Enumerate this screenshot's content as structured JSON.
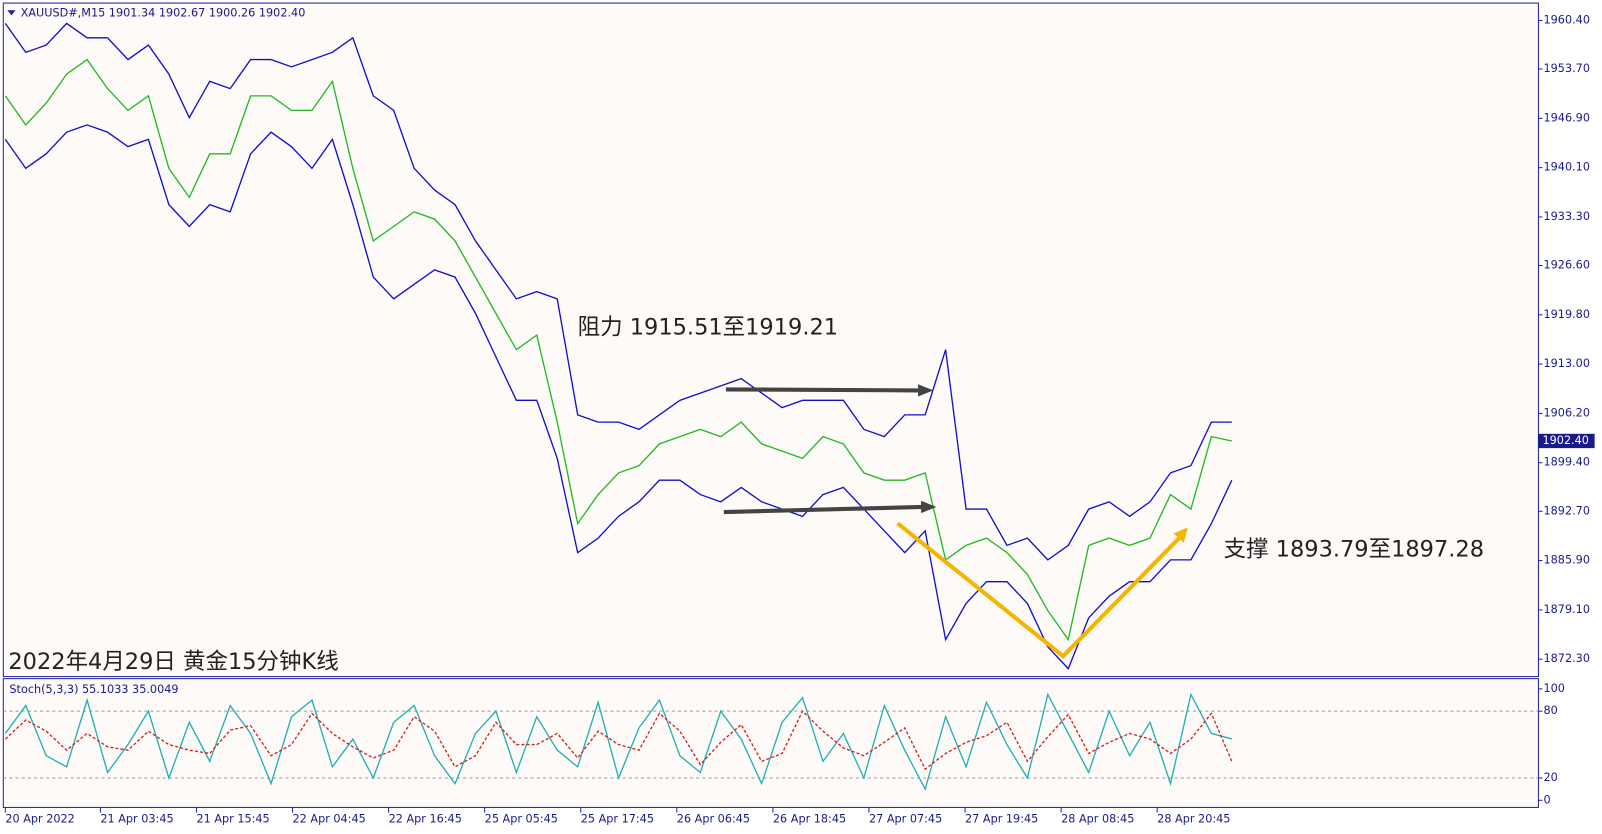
{
  "chart_data": [
    {
      "type": "line",
      "header": "XAUUSD#,M15  1901.34 1902.67 1900.26 1902.40",
      "annotations": [
        "阻力 1915.51至1919.21",
        "支撑 1893.79至1897.28",
        "2022年4月29日 黄金15分钟K线"
      ],
      "xlim": [
        0,
        60
      ],
      "xticks": [
        {
          "value": 0,
          "label": "20 Apr 2022"
        },
        {
          "value": 4.65,
          "label": "21 Apr 03:45"
        },
        {
          "value": 9.35,
          "label": "21 Apr 15:45"
        },
        {
          "value": 14.05,
          "label": "22 Apr 04:45"
        },
        {
          "value": 18.75,
          "label": "22 Apr 16:45"
        },
        {
          "value": 23.45,
          "label": "25 Apr 05:45"
        },
        {
          "value": 28.15,
          "label": "25 Apr 17:45"
        },
        {
          "value": 32.85,
          "label": "26 Apr 06:45"
        },
        {
          "value": 37.55,
          "label": "26 Apr 18:45"
        },
        {
          "value": 42.25,
          "label": "27 Apr 07:45"
        },
        {
          "value": 46.95,
          "label": "27 Apr 19:45"
        },
        {
          "value": 51.65,
          "label": "28 Apr 08:45"
        },
        {
          "value": 56.35,
          "label": "28 Apr 20:45"
        }
      ],
      "ylim": [
        1869.9,
        1962.8
      ],
      "yticks": [
        {
          "value": 1960.4,
          "label": "1960.40"
        },
        {
          "value": 1953.7,
          "label": "1953.70"
        },
        {
          "value": 1946.9,
          "label": "1946.90"
        },
        {
          "value": 1940.1,
          "label": "1940.10"
        },
        {
          "value": 1933.3,
          "label": "1933.30"
        },
        {
          "value": 1926.6,
          "label": "1926.60"
        },
        {
          "value": 1919.8,
          "label": "1919.80"
        },
        {
          "value": 1913,
          "label": "1913.00"
        },
        {
          "value": 1906.2,
          "label": "1906.20"
        },
        {
          "value": 1899.4,
          "label": "1899.40"
        },
        {
          "value": 1892.7,
          "label": "1892.70"
        },
        {
          "value": 1885.9,
          "label": "1885.90"
        },
        {
          "value": 1879.1,
          "label": "1879.10"
        },
        {
          "value": 1872.3,
          "label": "1872.30"
        }
      ],
      "last_price": {
        "value": 1902.4,
        "label": "1902.40"
      },
      "series": [
        {
          "color": "#22b822",
          "values": [
            1950,
            1946,
            1949,
            1953,
            1955,
            1951,
            1948,
            1950,
            1940,
            1936,
            1942,
            1942,
            1950,
            1950,
            1948,
            1948,
            1952,
            1940,
            1930,
            1932,
            1934,
            1933,
            1930,
            1925,
            1920,
            1915,
            1917,
            1905,
            1891,
            1895,
            1898,
            1899,
            1902,
            1903,
            1904,
            1903,
            1905,
            1902,
            1901,
            1900,
            1903,
            1902,
            1898,
            1897,
            1897,
            1898,
            1886,
            1888,
            1889,
            1887,
            1884,
            1879,
            1875,
            1888,
            1889,
            1888,
            1889,
            1895,
            1893,
            1903,
            1902.4
          ]
        },
        {
          "color": "#1010c8",
          "values": [
            1960,
            1956,
            1957,
            1960,
            1958,
            1958,
            1955,
            1957,
            1953,
            1947,
            1952,
            1951,
            1955,
            1955,
            1954,
            1955,
            1956,
            1958,
            1950,
            1948,
            1940,
            1937,
            1935,
            1930,
            1926,
            1922,
            1923,
            1922,
            1906,
            1905,
            1905,
            1904,
            1906,
            1908,
            1909,
            1910,
            1911,
            1909,
            1907,
            1908,
            1908,
            1908,
            1904,
            1903,
            1906,
            1906,
            1915,
            1893,
            1893,
            1888,
            1889,
            1886,
            1888,
            1893,
            1894,
            1892,
            1894,
            1898,
            1899,
            1905,
            1905
          ]
        },
        {
          "color": "#1010c8",
          "values": [
            1944,
            1940,
            1942,
            1945,
            1946,
            1945,
            1943,
            1944,
            1935,
            1932,
            1935,
            1934,
            1942,
            1945,
            1943,
            1940,
            1944,
            1935,
            1925,
            1922,
            1924,
            1926,
            1925,
            1920,
            1914,
            1908,
            1908,
            1900,
            1887,
            1889,
            1892,
            1894,
            1897,
            1897,
            1895,
            1894,
            1896,
            1894,
            1893,
            1892,
            1895,
            1896,
            1893,
            1890,
            1887,
            1890,
            1875,
            1880,
            1883,
            1883,
            1880,
            1874,
            1871,
            1878,
            1881,
            1883,
            1883,
            1886,
            1886,
            1891,
            1897
          ]
        }
      ]
    },
    {
      "type": "line",
      "title": "Stoch(5,3,3) 55.1033 35.0049",
      "xlim": [
        0,
        60
      ],
      "ylim": [
        -6.4,
        109.2
      ],
      "yticks": [
        100,
        80,
        20,
        0
      ],
      "levels": [
        80,
        20
      ],
      "series": [
        {
          "color": "#20b0b0",
          "values": [
            60,
            85,
            40,
            30,
            90,
            25,
            50,
            80,
            20,
            70,
            35,
            85,
            60,
            15,
            75,
            90,
            30,
            55,
            20,
            70,
            85,
            40,
            15,
            60,
            80,
            25,
            75,
            45,
            30,
            88,
            20,
            65,
            90,
            40,
            25,
            80,
            55,
            15,
            70,
            92,
            35,
            60,
            20,
            85,
            45,
            10,
            75,
            30,
            88,
            50,
            20,
            95,
            60,
            25,
            80,
            40,
            70,
            15,
            95,
            60,
            55.1033
          ]
        },
        {
          "color": "#d02020",
          "dashed": true,
          "values": [
            55,
            72,
            62,
            45,
            60,
            48,
            45,
            62,
            50,
            45,
            42,
            63,
            67,
            40,
            50,
            78,
            60,
            48,
            38,
            45,
            75,
            62,
            30,
            40,
            70,
            50,
            50,
            60,
            38,
            62,
            50,
            45,
            78,
            62,
            32,
            52,
            68,
            35,
            42,
            80,
            62,
            47,
            40,
            52,
            65,
            28,
            42,
            52,
            58,
            70,
            35,
            57,
            77,
            42,
            52,
            60,
            55,
            42,
            55,
            78,
            35.0049
          ]
        }
      ]
    }
  ]
}
